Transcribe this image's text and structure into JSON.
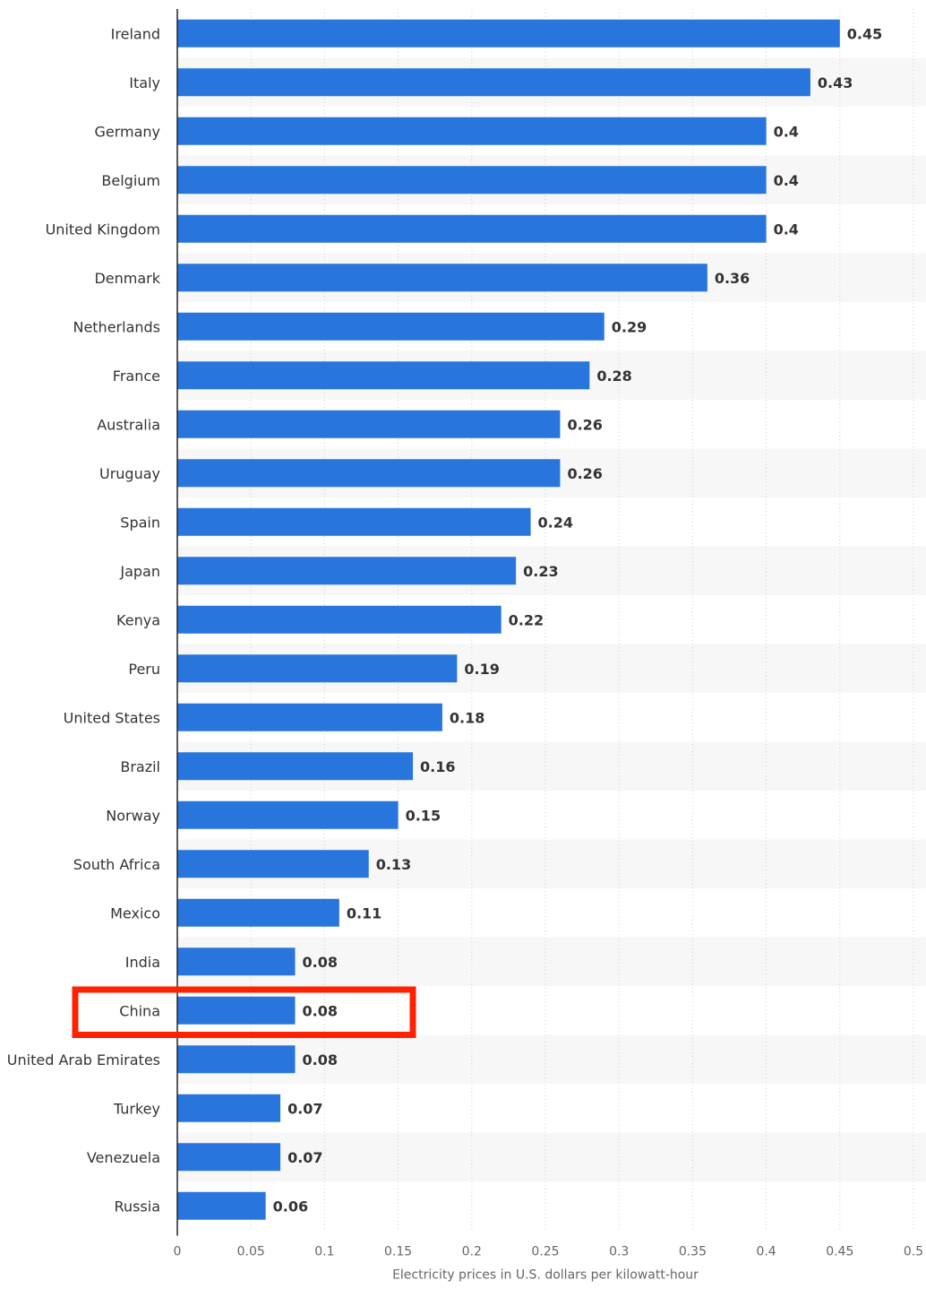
{
  "chart_data": {
    "type": "bar",
    "orientation": "horizontal",
    "categories": [
      "Ireland",
      "Italy",
      "Germany",
      "Belgium",
      "United Kingdom",
      "Denmark",
      "Netherlands",
      "France",
      "Australia",
      "Uruguay",
      "Spain",
      "Japan",
      "Kenya",
      "Peru",
      "United States",
      "Brazil",
      "Norway",
      "South Africa",
      "Mexico",
      "India",
      "China",
      "United Arab Emirates",
      "Turkey",
      "Venezuela",
      "Russia"
    ],
    "values": [
      0.45,
      0.43,
      0.4,
      0.4,
      0.4,
      0.36,
      0.29,
      0.28,
      0.26,
      0.26,
      0.24,
      0.23,
      0.22,
      0.19,
      0.18,
      0.16,
      0.15,
      0.13,
      0.11,
      0.08,
      0.08,
      0.08,
      0.07,
      0.07,
      0.06
    ],
    "value_labels": [
      "0.45",
      "0.43",
      "0.4",
      "0.4",
      "0.4",
      "0.36",
      "0.29",
      "0.28",
      "0.26",
      "0.26",
      "0.24",
      "0.23",
      "0.22",
      "0.19",
      "0.18",
      "0.16",
      "0.15",
      "0.13",
      "0.11",
      "0.08",
      "0.08",
      "0.08",
      "0.07",
      "0.07",
      "0.06"
    ],
    "xticks": [
      0,
      0.05,
      0.1,
      0.15,
      0.2,
      0.25,
      0.3,
      0.35,
      0.4,
      0.45,
      0.5
    ],
    "xtick_labels": [
      "0",
      "0.05",
      "0.1",
      "0.15",
      "0.2",
      "0.25",
      "0.3",
      "0.35",
      "0.4",
      "0.45",
      "0.5"
    ],
    "xlim": [
      0,
      0.5
    ],
    "xlabel": "Electricity prices in U.S. dollars per kilowatt-hour",
    "ylabel": "",
    "title": "",
    "grid": "vertical dotted",
    "highlighted_category": "China",
    "colors": {
      "bar": "#2876dd",
      "highlight_box": "#ff2200",
      "alt_row": "#f7f7f7"
    }
  }
}
